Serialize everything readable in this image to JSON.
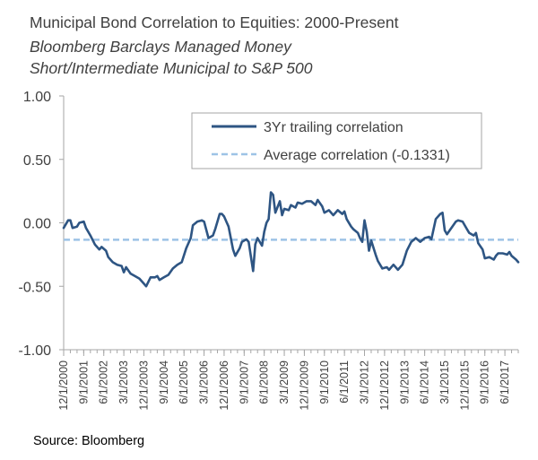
{
  "chart_data": {
    "type": "line",
    "title": "Municipal Bond Correlation to Equities: 2000-Present",
    "subtitle_lines": [
      "Bloomberg Barclays Managed Money",
      "Short/Intermediate Municipal to S&P 500"
    ],
    "source": "Source: Bloomberg",
    "xlabel": "",
    "ylabel": "",
    "ylim": [
      -1.0,
      1.0
    ],
    "yticks": [
      {
        "value": 1.0,
        "label": "1.00"
      },
      {
        "value": 0.5,
        "label": "0.50"
      },
      {
        "value": 0.0,
        "label": "0.00"
      },
      {
        "value": -0.5,
        "label": "-0.50"
      },
      {
        "value": -1.0,
        "label": "-1.00"
      }
    ],
    "x_start": "2000-12",
    "x_end": "2017-12",
    "xticks": [
      "12/1/2000",
      "9/1/2001",
      "6/1/2002",
      "3/1/2003",
      "12/1/2003",
      "9/1/2004",
      "6/1/2005",
      "3/1/2006",
      "12/1/2006",
      "9/1/2007",
      "6/1/2008",
      "3/1/2009",
      "12/1/2009",
      "9/1/2010",
      "6/1/2011",
      "3/1/2012",
      "12/1/2012",
      "9/1/2013",
      "6/1/2014",
      "3/1/2015",
      "12/1/2015",
      "9/1/2016",
      "6/1/2017"
    ],
    "grid": false,
    "legend_position": "top-right",
    "series": [
      {
        "name": "3Yr trailing correlation",
        "color": "#2e5583",
        "style": "solid",
        "points": [
          [
            "2000-12",
            -0.04
          ],
          [
            "2001-02",
            0.02
          ],
          [
            "2001-03",
            0.02
          ],
          [
            "2001-04",
            -0.04
          ],
          [
            "2001-06",
            -0.03
          ],
          [
            "2001-07",
            0.0
          ],
          [
            "2001-09",
            0.01
          ],
          [
            "2001-10",
            -0.04
          ],
          [
            "2001-12",
            -0.1
          ],
          [
            "2002-02",
            -0.17
          ],
          [
            "2002-04",
            -0.21
          ],
          [
            "2002-05",
            -0.19
          ],
          [
            "2002-07",
            -0.22
          ],
          [
            "2002-08",
            -0.27
          ],
          [
            "2002-10",
            -0.31
          ],
          [
            "2002-12",
            -0.33
          ],
          [
            "2003-02",
            -0.34
          ],
          [
            "2003-03",
            -0.39
          ],
          [
            "2003-04",
            -0.35
          ],
          [
            "2003-06",
            -0.4
          ],
          [
            "2003-08",
            -0.42
          ],
          [
            "2003-10",
            -0.44
          ],
          [
            "2003-12",
            -0.48
          ],
          [
            "2004-01",
            -0.5
          ],
          [
            "2004-03",
            -0.43
          ],
          [
            "2004-05",
            -0.43
          ],
          [
            "2004-06",
            -0.42
          ],
          [
            "2004-07",
            -0.45
          ],
          [
            "2004-09",
            -0.43
          ],
          [
            "2004-11",
            -0.41
          ],
          [
            "2005-01",
            -0.36
          ],
          [
            "2005-03",
            -0.33
          ],
          [
            "2005-05",
            -0.31
          ],
          [
            "2005-07",
            -0.2
          ],
          [
            "2005-09",
            -0.12
          ],
          [
            "2005-10",
            -0.02
          ],
          [
            "2005-12",
            0.01
          ],
          [
            "2006-02",
            0.02
          ],
          [
            "2006-03",
            0.01
          ],
          [
            "2006-05",
            -0.12
          ],
          [
            "2006-07",
            -0.1
          ],
          [
            "2006-08",
            -0.05
          ],
          [
            "2006-10",
            0.07
          ],
          [
            "2006-11",
            0.07
          ],
          [
            "2006-12",
            0.05
          ],
          [
            "2007-02",
            -0.03
          ],
          [
            "2007-04",
            -0.21
          ],
          [
            "2007-05",
            -0.26
          ],
          [
            "2007-07",
            -0.2
          ],
          [
            "2007-08",
            -0.15
          ],
          [
            "2007-10",
            -0.13
          ],
          [
            "2007-11",
            -0.15
          ],
          [
            "2008-01",
            -0.38
          ],
          [
            "2008-02",
            -0.17
          ],
          [
            "2008-03",
            -0.12
          ],
          [
            "2008-05",
            -0.18
          ],
          [
            "2008-06",
            -0.07
          ],
          [
            "2008-07",
            0.0
          ],
          [
            "2008-08",
            0.03
          ],
          [
            "2008-09",
            0.24
          ],
          [
            "2008-10",
            0.22
          ],
          [
            "2008-11",
            0.08
          ],
          [
            "2009-01",
            0.17
          ],
          [
            "2009-02",
            0.06
          ],
          [
            "2009-03",
            0.11
          ],
          [
            "2009-05",
            0.1
          ],
          [
            "2009-06",
            0.14
          ],
          [
            "2009-08",
            0.12
          ],
          [
            "2009-09",
            0.16
          ],
          [
            "2009-11",
            0.15
          ],
          [
            "2010-01",
            0.17
          ],
          [
            "2010-03",
            0.17
          ],
          [
            "2010-05",
            0.14
          ],
          [
            "2010-06",
            0.18
          ],
          [
            "2010-08",
            0.13
          ],
          [
            "2010-09",
            0.08
          ],
          [
            "2010-11",
            0.1
          ],
          [
            "2011-01",
            0.06
          ],
          [
            "2011-03",
            0.1
          ],
          [
            "2011-05",
            0.07
          ],
          [
            "2011-06",
            0.09
          ],
          [
            "2011-07",
            0.03
          ],
          [
            "2011-09",
            -0.03
          ],
          [
            "2011-10",
            -0.05
          ],
          [
            "2011-12",
            -0.08
          ],
          [
            "2012-01",
            -0.12
          ],
          [
            "2012-02",
            -0.15
          ],
          [
            "2012-03",
            0.02
          ],
          [
            "2012-04",
            -0.07
          ],
          [
            "2012-05",
            -0.22
          ],
          [
            "2012-06",
            -0.14
          ],
          [
            "2012-08",
            -0.25
          ],
          [
            "2012-09",
            -0.3
          ],
          [
            "2012-11",
            -0.36
          ],
          [
            "2013-01",
            -0.35
          ],
          [
            "2013-02",
            -0.37
          ],
          [
            "2013-04",
            -0.33
          ],
          [
            "2013-06",
            -0.37
          ],
          [
            "2013-08",
            -0.33
          ],
          [
            "2013-10",
            -0.22
          ],
          [
            "2013-12",
            -0.15
          ],
          [
            "2014-02",
            -0.12
          ],
          [
            "2014-04",
            -0.15
          ],
          [
            "2014-06",
            -0.12
          ],
          [
            "2014-08",
            -0.11
          ],
          [
            "2014-09",
            -0.13
          ],
          [
            "2014-11",
            0.03
          ],
          [
            "2015-01",
            0.07
          ],
          [
            "2015-02",
            0.08
          ],
          [
            "2015-03",
            -0.06
          ],
          [
            "2015-04",
            -0.09
          ],
          [
            "2015-06",
            -0.04
          ],
          [
            "2015-08",
            0.01
          ],
          [
            "2015-09",
            0.02
          ],
          [
            "2015-11",
            0.01
          ],
          [
            "2016-01",
            -0.05
          ],
          [
            "2016-02",
            -0.08
          ],
          [
            "2016-04",
            -0.1
          ],
          [
            "2016-05",
            -0.08
          ],
          [
            "2016-06",
            -0.16
          ],
          [
            "2016-08",
            -0.21
          ],
          [
            "2016-09",
            -0.28
          ],
          [
            "2016-11",
            -0.27
          ],
          [
            "2017-01",
            -0.29
          ],
          [
            "2017-02",
            -0.26
          ],
          [
            "2017-03",
            -0.24
          ],
          [
            "2017-05",
            -0.24
          ],
          [
            "2017-07",
            -0.25
          ],
          [
            "2017-08",
            -0.23
          ],
          [
            "2017-09",
            -0.26
          ],
          [
            "2017-11",
            -0.29
          ],
          [
            "2017-12",
            -0.31
          ]
        ]
      },
      {
        "name": "Average correlation (-0.1331)",
        "color": "#9dc3e6",
        "style": "dashed",
        "value": -0.1331
      }
    ]
  }
}
